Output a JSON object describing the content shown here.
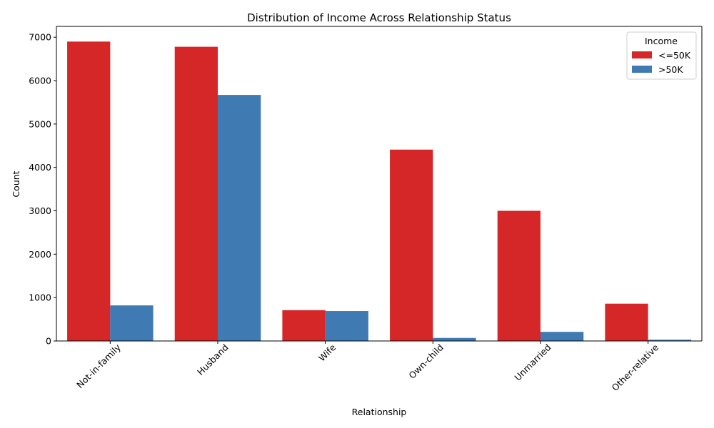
{
  "chart_data": {
    "type": "bar",
    "title": "Distribution of Income Across Relationship Status",
    "xlabel": "Relationship",
    "ylabel": "Count",
    "categories": [
      "Not-in-family",
      "Husband",
      "Wife",
      "Own-child",
      "Unmarried",
      "Other-relative"
    ],
    "series": [
      {
        "name": "<=50K",
        "color": "#d62728",
        "values": [
          6900,
          6780,
          710,
          4410,
          3000,
          860
        ]
      },
      {
        "name": ">50K",
        "color": "#3f7ab2",
        "values": [
          820,
          5670,
          690,
          70,
          210,
          30
        ]
      }
    ],
    "ylim": [
      0,
      7250
    ],
    "yticks": [
      0,
      1000,
      2000,
      3000,
      4000,
      5000,
      6000,
      7000
    ],
    "grid": false,
    "legend": {
      "title": "Income",
      "placement": "top-right"
    }
  }
}
